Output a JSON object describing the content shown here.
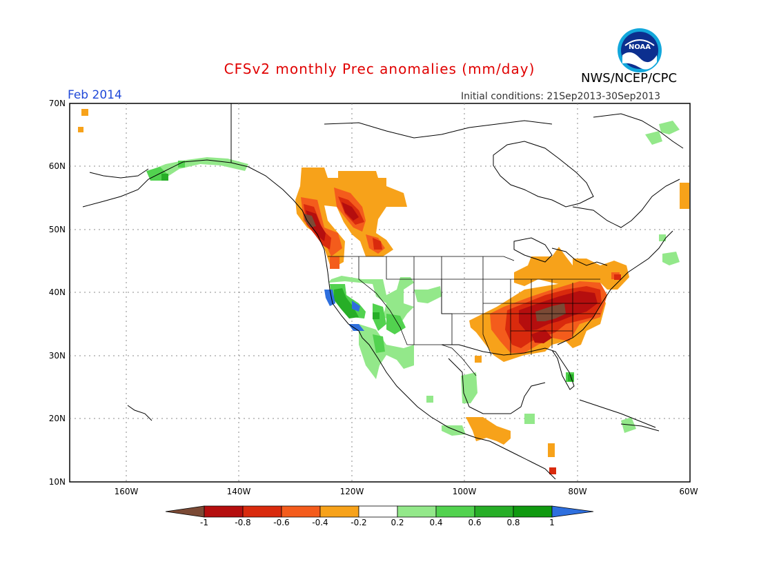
{
  "header": {
    "title": "CFSv2 monthly Prec anomalies (mm/day)",
    "agency": "NWS/NCEP/CPC",
    "month": "Feb 2014",
    "initial_conditions": "Initial conditions: 21Sep2013-30Sep2013",
    "logo_text": "NOAA"
  },
  "axes": {
    "lat_labels": [
      "70N",
      "60N",
      "50N",
      "40N",
      "30N",
      "20N",
      "10N"
    ],
    "lon_labels": [
      "160W",
      "140W",
      "120W",
      "100W",
      "80W",
      "60W"
    ]
  },
  "colorbar": {
    "labels": [
      "-1",
      "-0.8",
      "-0.6",
      "-0.4",
      "-0.2",
      "0.2",
      "0.4",
      "0.6",
      "0.8",
      "1"
    ],
    "colors": [
      "#7b4a35",
      "#b50e0e",
      "#d92a0d",
      "#f45c1c",
      "#f7a21a",
      "#ffffff",
      "#93e88a",
      "#52d24f",
      "#27ae27",
      "#109a10",
      "#2e6fde"
    ]
  }
}
